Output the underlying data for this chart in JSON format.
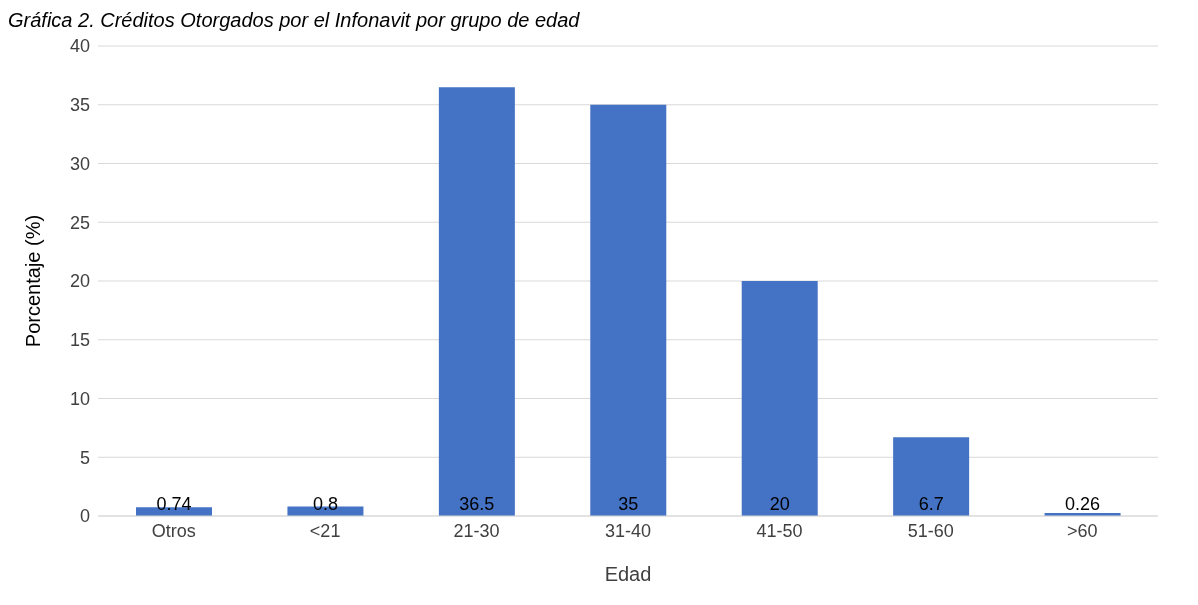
{
  "chart_data": {
    "type": "bar",
    "title": "Gráfica 2. Créditos Otorgados por el Infonavit por grupo de edad",
    "xlabel": "Edad",
    "ylabel": "Porcentaje (%)",
    "categories": [
      "Otros",
      "<21",
      "21-30",
      "31-40",
      "41-50",
      "51-60",
      ">60"
    ],
    "values": [
      0.74,
      0.8,
      36.5,
      35,
      20,
      6.7,
      0.26
    ],
    "color": "#4472c4",
    "ylim": [
      0,
      40
    ],
    "yticks": [
      0,
      5,
      10,
      15,
      20,
      25,
      30,
      35,
      40
    ],
    "grid": "y",
    "data_labels": true
  }
}
